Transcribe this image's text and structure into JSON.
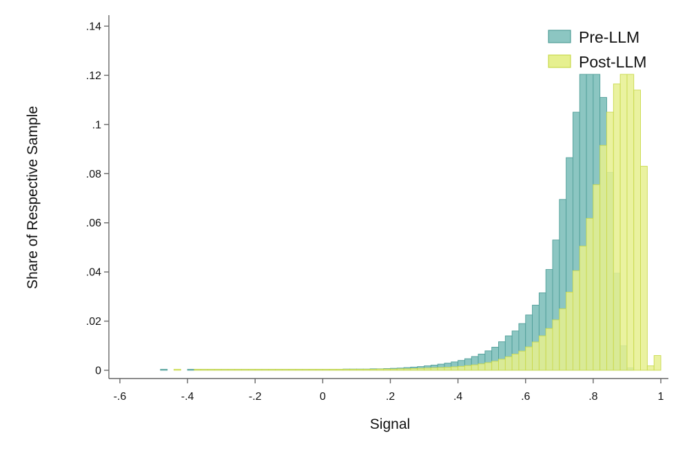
{
  "chart_data": {
    "type": "bar",
    "xlabel": "Signal",
    "ylabel": "Share of Respective Sample",
    "xlim": [
      -0.6,
      1.0
    ],
    "ylim": [
      0,
      0.14
    ],
    "x_ticks": [
      -0.6,
      -0.4,
      -0.2,
      0,
      0.2,
      0.4,
      0.6,
      0.8,
      1.0
    ],
    "x_tick_labels": [
      "-.6",
      "-.4",
      "-.2",
      "0",
      ".2",
      ".4",
      ".6",
      ".8",
      "1"
    ],
    "y_ticks": [
      0,
      0.02,
      0.04,
      0.06,
      0.08,
      0.1,
      0.12,
      0.14
    ],
    "y_tick_labels": [
      "0",
      ".02",
      ".04",
      ".06",
      ".08",
      ".1",
      ".12",
      ".14"
    ],
    "legend_position": "top-right",
    "series": [
      {
        "name": "Pre-LLM",
        "color": "#8cc6c2",
        "edge": "#4f9e98",
        "bins": [
          [
            -0.48,
            0.0004
          ],
          [
            -0.4,
            0.0004
          ],
          [
            -0.38,
            0.0004
          ],
          [
            -0.36,
            0.0004
          ],
          [
            -0.34,
            0.0004
          ],
          [
            -0.32,
            0.0004
          ],
          [
            -0.3,
            0.0004
          ],
          [
            -0.28,
            0.0004
          ],
          [
            -0.26,
            0.0004
          ],
          [
            -0.24,
            0.0004
          ],
          [
            -0.22,
            0.0004
          ],
          [
            -0.2,
            0.0004
          ],
          [
            -0.18,
            0.0004
          ],
          [
            -0.16,
            0.0004
          ],
          [
            -0.14,
            0.0004
          ],
          [
            -0.12,
            0.0004
          ],
          [
            -0.1,
            0.0004
          ],
          [
            -0.08,
            0.0004
          ],
          [
            -0.06,
            0.0004
          ],
          [
            -0.04,
            0.0004
          ],
          [
            -0.02,
            0.0004
          ],
          [
            0.0,
            0.0004
          ],
          [
            0.02,
            0.0004
          ],
          [
            0.04,
            0.0004
          ],
          [
            0.06,
            0.0005
          ],
          [
            0.08,
            0.0005
          ],
          [
            0.1,
            0.0005
          ],
          [
            0.12,
            0.0005
          ],
          [
            0.14,
            0.0006
          ],
          [
            0.16,
            0.0006
          ],
          [
            0.18,
            0.0007
          ],
          [
            0.2,
            0.0008
          ],
          [
            0.22,
            0.0009
          ],
          [
            0.24,
            0.0011
          ],
          [
            0.26,
            0.0013
          ],
          [
            0.28,
            0.0015
          ],
          [
            0.3,
            0.0018
          ],
          [
            0.32,
            0.0021
          ],
          [
            0.34,
            0.0025
          ],
          [
            0.36,
            0.0029
          ],
          [
            0.38,
            0.0034
          ],
          [
            0.4,
            0.004
          ],
          [
            0.42,
            0.0047
          ],
          [
            0.44,
            0.0056
          ],
          [
            0.46,
            0.0066
          ],
          [
            0.48,
            0.0079
          ],
          [
            0.5,
            0.0094
          ],
          [
            0.52,
            0.0116
          ],
          [
            0.54,
            0.014
          ],
          [
            0.56,
            0.016
          ],
          [
            0.58,
            0.019
          ],
          [
            0.6,
            0.0225
          ],
          [
            0.62,
            0.0265
          ],
          [
            0.64,
            0.0315
          ],
          [
            0.66,
            0.041
          ],
          [
            0.68,
            0.053
          ],
          [
            0.7,
            0.0695
          ],
          [
            0.72,
            0.0865
          ],
          [
            0.74,
            0.105
          ],
          [
            0.76,
            0.125
          ],
          [
            0.78,
            0.132
          ],
          [
            0.8,
            0.13
          ],
          [
            0.82,
            0.111
          ],
          [
            0.84,
            0.0805
          ],
          [
            0.86,
            0.0395
          ],
          [
            0.88,
            0.01
          ],
          [
            0.9,
            0.001
          ]
        ]
      },
      {
        "name": "Post-LLM",
        "color": "#e6f08f",
        "edge": "#c9d94c",
        "bins": [
          [
            -0.44,
            0.0004
          ],
          [
            -0.38,
            0.0004
          ],
          [
            -0.36,
            0.0004
          ],
          [
            -0.34,
            0.0004
          ],
          [
            -0.32,
            0.0004
          ],
          [
            -0.3,
            0.0004
          ],
          [
            -0.28,
            0.0004
          ],
          [
            -0.26,
            0.0004
          ],
          [
            -0.24,
            0.0004
          ],
          [
            -0.22,
            0.0004
          ],
          [
            -0.2,
            0.0004
          ],
          [
            -0.18,
            0.0004
          ],
          [
            -0.16,
            0.0004
          ],
          [
            -0.14,
            0.0004
          ],
          [
            -0.12,
            0.0004
          ],
          [
            -0.1,
            0.0004
          ],
          [
            -0.08,
            0.0004
          ],
          [
            -0.06,
            0.0004
          ],
          [
            -0.04,
            0.0004
          ],
          [
            -0.02,
            0.0004
          ],
          [
            0.0,
            0.0004
          ],
          [
            0.02,
            0.0004
          ],
          [
            0.04,
            0.0004
          ],
          [
            0.06,
            0.0004
          ],
          [
            0.08,
            0.0004
          ],
          [
            0.1,
            0.0004
          ],
          [
            0.12,
            0.0004
          ],
          [
            0.14,
            0.0004
          ],
          [
            0.16,
            0.0005
          ],
          [
            0.18,
            0.0005
          ],
          [
            0.2,
            0.0005
          ],
          [
            0.22,
            0.0006
          ],
          [
            0.24,
            0.0006
          ],
          [
            0.26,
            0.0007
          ],
          [
            0.28,
            0.0008
          ],
          [
            0.3,
            0.0009
          ],
          [
            0.32,
            0.001
          ],
          [
            0.34,
            0.0011
          ],
          [
            0.36,
            0.0012
          ],
          [
            0.38,
            0.0014
          ],
          [
            0.4,
            0.0016
          ],
          [
            0.42,
            0.0019
          ],
          [
            0.44,
            0.0022
          ],
          [
            0.46,
            0.0026
          ],
          [
            0.48,
            0.0031
          ],
          [
            0.5,
            0.0037
          ],
          [
            0.52,
            0.0045
          ],
          [
            0.54,
            0.0055
          ],
          [
            0.56,
            0.0066
          ],
          [
            0.58,
            0.0078
          ],
          [
            0.6,
            0.0095
          ],
          [
            0.62,
            0.0115
          ],
          [
            0.64,
            0.014
          ],
          [
            0.66,
            0.017
          ],
          [
            0.68,
            0.0205
          ],
          [
            0.7,
            0.025
          ],
          [
            0.72,
            0.0318
          ],
          [
            0.74,
            0.0405
          ],
          [
            0.76,
            0.0505
          ],
          [
            0.78,
            0.0618
          ],
          [
            0.8,
            0.0755
          ],
          [
            0.82,
            0.0915
          ],
          [
            0.84,
            0.105
          ],
          [
            0.86,
            0.1165
          ],
          [
            0.88,
            0.123
          ],
          [
            0.9,
            0.121
          ],
          [
            0.92,
            0.114
          ],
          [
            0.94,
            0.083
          ],
          [
            0.96,
            0.0018
          ],
          [
            0.98,
            0.006
          ]
        ]
      }
    ]
  }
}
